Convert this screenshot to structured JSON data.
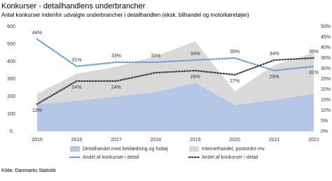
{
  "chart_data": {
    "type": "stacked-area-line",
    "title": "Konkurser - detailhandlens underbrancher",
    "subtitle": "Antal konkurser indenfor udvalgte underbrancher i detailhandlen (eksk. bilhandel og motorkøretøjer)",
    "source": "Kilde: Danmarks Statistik",
    "categories": [
      "2015",
      "2016",
      "2017",
      "2018",
      "2019",
      "2020",
      "2021",
      "2022"
    ],
    "ylim": [
      0,
      600
    ],
    "yticks": [
      0,
      100,
      200,
      300,
      400,
      500,
      600
    ],
    "y2lim": [
      0,
      50
    ],
    "y2ticks": [
      {
        "value": 0,
        "label": "0%"
      },
      {
        "value": 5,
        "label": "5%"
      },
      {
        "value": 10,
        "label": "10%"
      },
      {
        "value": 15,
        "label": "15%"
      },
      {
        "value": 20,
        "label": "20%"
      },
      {
        "value": 25,
        "label": "25%"
      },
      {
        "value": 30,
        "label": "30%"
      },
      {
        "value": 35,
        "label": "35%"
      },
      {
        "value": 40,
        "label": "40%"
      },
      {
        "value": 45,
        "label": "45%"
      },
      {
        "value": 50,
        "label": "50%"
      }
    ],
    "series": [
      {
        "name": "Detailhandel med beklædning og fodtøj",
        "kind": "area",
        "color": "#b4c7e7",
        "values": [
          155,
          175,
          200,
          225,
          280,
          150,
          180,
          215
        ]
      },
      {
        "name": "Internethandel, postordre mv.",
        "kind": "area",
        "color": "#d9d9d9",
        "values": [
          60,
          155,
          170,
          205,
          235,
          80,
          200,
          235
        ]
      },
      {
        "name": "Andel af konkurser i detail",
        "kind": "line",
        "axis": "y2",
        "color": "#5b9bd5",
        "values": [
          44,
          31,
          33,
          33,
          34,
          35,
          29,
          31
        ],
        "value_labels": [
          "44%",
          "31%",
          "33%",
          "33%",
          "34%",
          "35%",
          "29%",
          "31%"
        ]
      },
      {
        "name": "Andel af konkurser i detail",
        "kind": "line",
        "axis": "y2",
        "color": "#404040",
        "values": [
          13,
          24,
          24,
          28,
          29,
          27,
          34,
          35
        ],
        "value_labels": [
          "13%",
          "24%",
          "24%",
          null,
          "29%",
          "27%",
          "34%",
          "35%"
        ]
      }
    ]
  }
}
